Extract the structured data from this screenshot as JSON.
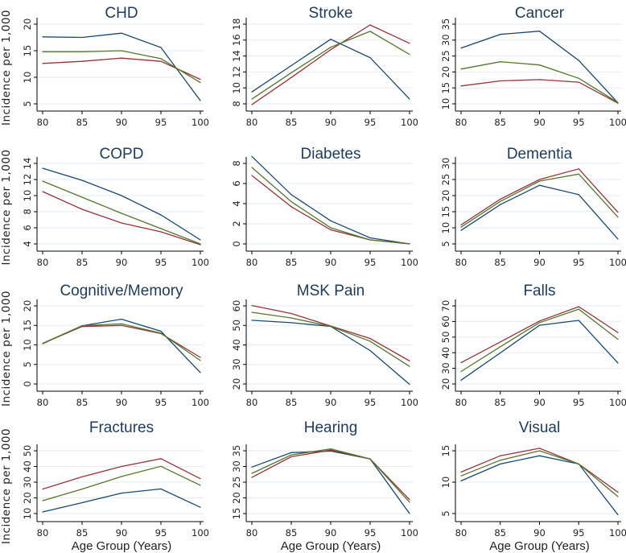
{
  "chart_data": {
    "type": "line",
    "ylabel": "Incidence per 1,000",
    "xlabel": "Age Group (Years)",
    "x": [
      80,
      85,
      90,
      95,
      100
    ],
    "xticks": [
      "80",
      "85",
      "90",
      "95",
      "100"
    ],
    "series_colors": [
      "#1a476f",
      "#90353b",
      "#55752f"
    ],
    "grid": true,
    "panels": [
      {
        "title": "CHD",
        "yticks": [
          5,
          10,
          15,
          20
        ],
        "series": [
          [
            17.6,
            17.5,
            18.3,
            15.6,
            5.6
          ],
          [
            12.6,
            13.0,
            13.6,
            13.0,
            9.6
          ],
          [
            14.8,
            14.8,
            15.0,
            13.5,
            9.0
          ]
        ]
      },
      {
        "title": "Stroke",
        "yticks": [
          8,
          10,
          12,
          14,
          16,
          18
        ],
        "series": [
          [
            9.5,
            12.8,
            16.1,
            13.8,
            8.6
          ],
          [
            7.9,
            11.3,
            14.8,
            17.9,
            15.6
          ],
          [
            8.6,
            11.9,
            15.1,
            17.1,
            14.2
          ]
        ]
      },
      {
        "title": "Cancer",
        "yticks": [
          10,
          15,
          20,
          25,
          30,
          35
        ],
        "series": [
          [
            27.5,
            31.8,
            32.8,
            23.6,
            10.3
          ],
          [
            15.6,
            17.2,
            17.6,
            16.8,
            10.2
          ],
          [
            20.9,
            23.2,
            22.2,
            18.0,
            10.4
          ]
        ]
      },
      {
        "title": "COPD",
        "yticks": [
          4,
          6,
          8,
          10,
          12,
          14
        ],
        "series": [
          [
            13.4,
            11.9,
            10.0,
            7.6,
            4.5
          ],
          [
            10.5,
            8.3,
            6.6,
            5.5,
            3.9
          ],
          [
            11.8,
            9.8,
            7.8,
            5.9,
            4.0
          ]
        ]
      },
      {
        "title": "Diabetes",
        "yticks": [
          0,
          2,
          4,
          6,
          8
        ],
        "series": [
          [
            8.7,
            4.9,
            2.3,
            0.6,
            0.0
          ],
          [
            6.8,
            3.7,
            1.4,
            0.4,
            0.0
          ],
          [
            7.6,
            4.2,
            1.6,
            0.4,
            0.0
          ]
        ]
      },
      {
        "title": "Dementia",
        "yticks": [
          5,
          10,
          15,
          20,
          25,
          30
        ],
        "series": [
          [
            9.2,
            17.2,
            23.2,
            20.3,
            6.5
          ],
          [
            10.9,
            18.9,
            25.0,
            28.3,
            14.8
          ],
          [
            10.2,
            18.2,
            24.5,
            26.7,
            13.3
          ]
        ]
      },
      {
        "title": "Cognitive/Memory",
        "yticks": [
          0,
          5,
          10,
          15,
          20
        ],
        "series": [
          [
            10.3,
            14.9,
            16.6,
            13.5,
            2.9
          ],
          [
            10.4,
            14.7,
            15.0,
            12.9,
            6.8
          ],
          [
            10.4,
            14.9,
            15.4,
            13.0,
            6.0
          ]
        ]
      },
      {
        "title": "MSK Pain",
        "yticks": [
          20,
          30,
          40,
          50,
          60
        ],
        "series": [
          [
            52.6,
            51.4,
            49.5,
            37.1,
            19.8
          ],
          [
            60.2,
            56.1,
            49.7,
            43.3,
            31.8
          ],
          [
            56.7,
            53.8,
            49.5,
            41.9,
            29.0
          ]
        ]
      },
      {
        "title": "Falls",
        "yticks": [
          20,
          30,
          40,
          50,
          60,
          70
        ],
        "series": [
          [
            22.4,
            39.9,
            57.6,
            60.7,
            33.4
          ],
          [
            33.6,
            46.9,
            60.3,
            69.5,
            52.9
          ],
          [
            28.0,
            43.8,
            59.3,
            67.9,
            48.6
          ]
        ]
      },
      {
        "title": "Fractures",
        "yticks": [
          10,
          20,
          30,
          40,
          50
        ],
        "series": [
          [
            11.0,
            16.9,
            23.0,
            25.7,
            14.0
          ],
          [
            25.6,
            33.4,
            40.0,
            45.0,
            32.2
          ],
          [
            18.2,
            25.6,
            33.6,
            40.1,
            28.0
          ]
        ]
      },
      {
        "title": "Hearing",
        "yticks": [
          15,
          20,
          25,
          30,
          35
        ],
        "series": [
          [
            29.8,
            34.4,
            34.9,
            32.4,
            15.0
          ],
          [
            26.5,
            33.1,
            35.2,
            32.4,
            19.4
          ],
          [
            27.8,
            33.7,
            35.6,
            32.4,
            18.6
          ]
        ]
      },
      {
        "title": "Visual",
        "yticks": [
          5,
          10,
          15
        ],
        "series": [
          [
            10.2,
            12.9,
            14.2,
            12.9,
            4.8
          ],
          [
            11.6,
            14.2,
            15.4,
            12.9,
            8.4
          ],
          [
            11.0,
            13.5,
            15.0,
            12.9,
            7.7
          ]
        ]
      }
    ]
  }
}
